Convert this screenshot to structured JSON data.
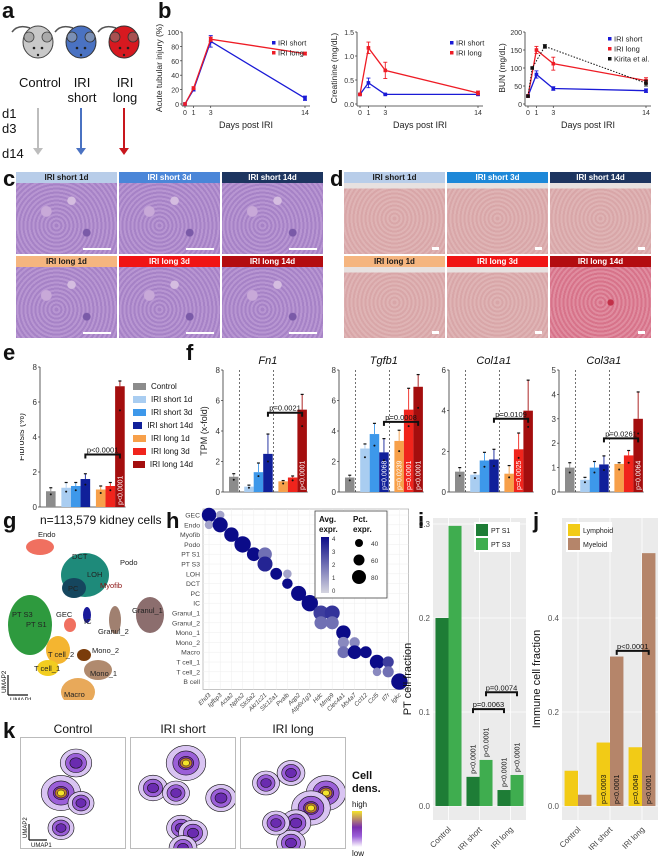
{
  "panels": {
    "a": "a",
    "b": "b",
    "c": "c",
    "d": "d",
    "e": "e",
    "f": "f",
    "g": "g",
    "h": "h",
    "i": "i",
    "j": "j",
    "k": "k"
  },
  "panel_a": {
    "groups": [
      {
        "label_line1": "Control",
        "label_line2": "",
        "color": "#bdbdbd"
      },
      {
        "label_line1": "IRI",
        "label_line2": "short",
        "color": "#4a72c2"
      },
      {
        "label_line1": "IRI",
        "label_line2": "long",
        "color": "#c8161d"
      }
    ],
    "timepoints": [
      "d1",
      "d3",
      "d14"
    ]
  },
  "panel_c": {
    "tiles": [
      {
        "label": "IRI short 1d",
        "hdr_color": "#b8cde9",
        "text_color": "#1a1a1a"
      },
      {
        "label": "IRI short 3d",
        "hdr_color": "#4a86d8",
        "text_color": "#ffffff"
      },
      {
        "label": "IRI short 14d",
        "hdr_color": "#1d3560",
        "text_color": "#ffffff"
      },
      {
        "label": "IRI long 1d",
        "hdr_color": "#f5b57f",
        "text_color": "#1a1a1a"
      },
      {
        "label": "IRI long 3d",
        "hdr_color": "#f01414",
        "text_color": "#ffffff"
      },
      {
        "label": "IRI long 14d",
        "hdr_color": "#b30c10",
        "text_color": "#ffffff"
      }
    ]
  },
  "panel_d": {
    "tiles": [
      {
        "label": "IRI short 1d",
        "hdr_color": "#b8cde9",
        "text_color": "#1a1a1a"
      },
      {
        "label": "IRI short 3d",
        "hdr_color": "#1e88d8",
        "text_color": "#ffffff"
      },
      {
        "label": "IRI short 14d",
        "hdr_color": "#1d3560",
        "text_color": "#ffffff"
      },
      {
        "label": "IRI long 1d",
        "hdr_color": "#f5b57f",
        "text_color": "#1a1a1a"
      },
      {
        "label": "IRI long 3d",
        "hdr_color": "#f01414",
        "text_color": "#ffffff"
      },
      {
        "label": "IRI long 14d",
        "hdr_color": "#b30c10",
        "text_color": "#ffffff"
      }
    ]
  },
  "panel_e_legend": [
    {
      "label": "Control",
      "color": "#8c8c8c"
    },
    {
      "label": "IRI short 1d",
      "color": "#a9cdf1"
    },
    {
      "label": "IRI short 3d",
      "color": "#3d98ea"
    },
    {
      "label": "IRI short 14d",
      "color": "#10209a"
    },
    {
      "label": "IRI long 1d",
      "color": "#f7a04a"
    },
    {
      "label": "IRI long 3d",
      "color": "#f0241c"
    },
    {
      "label": "IRI long 14d",
      "color": "#a40e0e"
    }
  ],
  "panel_g": {
    "title": "n=113,579 kidney cells",
    "axis_x": "UMAP1",
    "axis_y": "UMAP2",
    "clusters": [
      "Endo",
      "DCT",
      "LOH",
      "Podo",
      "PC",
      "Myofib",
      "PT S3",
      "PT S1",
      "GEC",
      "IC",
      "Granul_1",
      "Granul_2",
      "T cell_2",
      "T cell_1",
      "Mono_2",
      "Mono_1",
      "Macro",
      "B cell"
    ]
  },
  "panel_h": {
    "legend_avg_title": "Avg. expr.",
    "legend_pct_title": "Pct. expr.",
    "avg_ticks": [
      "4",
      "3",
      "2",
      "1",
      "0"
    ],
    "pct_ticks": [
      "40",
      "60",
      "80"
    ]
  },
  "panel_k": {
    "titles": [
      "Control",
      "IRI short",
      "IRI long"
    ],
    "axis_x": "UMAP1",
    "axis_y": "UMAP2",
    "legend_title_1": "Cell",
    "legend_title_2": "dens.",
    "legend_high": "high",
    "legend_low": "low"
  },
  "chart_data": [
    {
      "id": "b1",
      "type": "line",
      "title": "",
      "xlabel": "Days post IRI",
      "ylabel": "Acute tubular injury (%)",
      "x": [
        0,
        1,
        3,
        14
      ],
      "ylim": [
        0,
        100
      ],
      "yticks": [
        0,
        20,
        40,
        60,
        80,
        100
      ],
      "series": [
        {
          "name": "IRI short",
          "color": "#1a1ad6",
          "values": [
            0,
            20,
            87,
            8
          ],
          "err": [
            0,
            2,
            8,
            3
          ]
        },
        {
          "name": "IRI long",
          "color": "#ee1c25",
          "values": [
            0,
            22,
            90,
            70
          ],
          "err": [
            0,
            2,
            3,
            2
          ]
        }
      ]
    },
    {
      "id": "b2",
      "type": "line",
      "xlabel": "Days post IRI",
      "ylabel": "Creatinine (mg/dL)",
      "x": [
        0,
        1,
        3,
        14
      ],
      "ylim": [
        0,
        1.5
      ],
      "yticks": [
        0.0,
        0.5,
        1.0,
        1.5
      ],
      "series": [
        {
          "name": "IRI short",
          "color": "#1a1ad6",
          "values": [
            0.2,
            0.44,
            0.2,
            0.2
          ],
          "err": [
            0.01,
            0.1,
            0.01,
            0.02
          ]
        },
        {
          "name": "IRI long",
          "color": "#ee1c25",
          "values": [
            0.2,
            1.17,
            0.7,
            0.23
          ],
          "err": [
            0.01,
            0.12,
            0.17,
            0.04
          ]
        }
      ]
    },
    {
      "id": "b3",
      "type": "line",
      "xlabel": "Days post IRI",
      "ylabel": "BUN (mg/dL)",
      "x": [
        0,
        1,
        3,
        14
      ],
      "ylim": [
        0,
        200
      ],
      "yticks": [
        0,
        50,
        100,
        150,
        200
      ],
      "series": [
        {
          "name": "IRI short",
          "color": "#1a1ad6",
          "values": [
            22,
            82,
            43,
            37
          ],
          "err": [
            0,
            10,
            5,
            5
          ],
          "x": [
            0,
            1,
            3,
            14
          ]
        },
        {
          "name": "IRI long",
          "color": "#ee1c25",
          "values": [
            22,
            150,
            112,
            65
          ],
          "err": [
            0,
            10,
            18,
            8
          ],
          "x": [
            0,
            1,
            3,
            14
          ]
        },
        {
          "name": "Kirita et al.",
          "color": "#111111",
          "dashed": true,
          "values": [
            22,
            100,
            160,
            58
          ],
          "err": [
            0,
            0,
            5,
            8
          ],
          "x": [
            0,
            0.5,
            2,
            14
          ]
        }
      ]
    },
    {
      "id": "e",
      "type": "bar",
      "ylabel": "Fibrosis (%)",
      "ylim": [
        0,
        8
      ],
      "yticks": [
        0,
        2,
        4,
        6,
        8
      ],
      "categories": [
        "Control",
        "IRI short 1d",
        "IRI short 3d",
        "IRI short 14d",
        "IRI long 1d",
        "IRI long 3d",
        "IRI long 14d"
      ],
      "values": [
        0.9,
        1.1,
        1.2,
        1.6,
        1.0,
        1.2,
        6.9
      ],
      "err": [
        0.2,
        0.3,
        0.2,
        0.3,
        0.2,
        0.2,
        0.3
      ],
      "annotations": [
        {
          "text": "p<0.0001",
          "type": "bracket",
          "from": 3,
          "to": 6,
          "y": 3.0
        },
        {
          "text": "p<0.0001",
          "type": "vertical",
          "bar": 6
        }
      ]
    },
    {
      "id": "f1",
      "type": "bar",
      "title": "Fn1",
      "ylabel": "TPM (x-fold)",
      "ylim": [
        0,
        8
      ],
      "yticks": [
        0,
        2,
        4,
        6,
        8
      ],
      "categories": [
        "Control",
        "IRI short 1d",
        "IRI short 3d",
        "IRI short 14d",
        "IRI long 1d",
        "IRI long 3d",
        "IRI long 14d"
      ],
      "values": [
        1.0,
        0.35,
        1.3,
        2.5,
        0.7,
        0.95,
        5.4
      ],
      "err": [
        0.2,
        0.1,
        0.6,
        1.3,
        0.05,
        0.1,
        1.0
      ],
      "annotations": [
        {
          "text": "p=0.0021",
          "type": "bracket",
          "from": 3,
          "to": 6,
          "y": 5.2
        },
        {
          "text": "p<0.0001",
          "type": "vertical",
          "bar": 6
        }
      ]
    },
    {
      "id": "f2",
      "type": "bar",
      "title": "Tgfb1",
      "ylim": [
        0,
        8
      ],
      "yticks": [
        0,
        2,
        4,
        6,
        8
      ],
      "categories": [
        "Control",
        "IRI short 1d",
        "IRI short 3d",
        "IRI short 14d",
        "IRI long 1d",
        "IRI long 3d",
        "IRI long 14d"
      ],
      "values": [
        0.95,
        2.85,
        3.8,
        2.6,
        3.35,
        5.4,
        6.9
      ],
      "err": [
        0.15,
        0.3,
        0.7,
        0.9,
        0.7,
        1.4,
        0.8
      ],
      "annotations": [
        {
          "text": "p=0.0008",
          "type": "bracket",
          "from": 3,
          "to": 6,
          "y": 4.6
        },
        {
          "text": "p=0.0068",
          "type": "vertical",
          "bar": 3
        },
        {
          "text": "p=0.0239",
          "type": "vertical",
          "bar": 4
        },
        {
          "text": "p=0.0001",
          "type": "vertical",
          "bar": 5
        },
        {
          "text": "p<0.0001",
          "type": "vertical",
          "bar": 6
        }
      ]
    },
    {
      "id": "f3",
      "type": "bar",
      "title": "Col1a1",
      "ylim": [
        0,
        6
      ],
      "yticks": [
        0,
        2,
        4,
        6
      ],
      "categories": [
        "Control",
        "IRI short 1d",
        "IRI short 3d",
        "IRI short 14d",
        "IRI long 1d",
        "IRI long 3d",
        "IRI long 14d"
      ],
      "values": [
        1.0,
        0.85,
        1.55,
        1.6,
        0.9,
        2.1,
        4.0
      ],
      "err": [
        0.2,
        0.1,
        0.4,
        0.5,
        0.4,
        0.8,
        1.5
      ],
      "annotations": [
        {
          "text": "p=0.0109",
          "type": "bracket",
          "from": 3,
          "to": 6,
          "y": 3.6
        },
        {
          "text": "p=0.0025",
          "type": "vertical",
          "bar": 5
        }
      ]
    },
    {
      "id": "f4",
      "type": "bar",
      "title": "Col3a1",
      "ylim": [
        0,
        5
      ],
      "yticks": [
        0,
        1,
        2,
        3,
        4,
        5
      ],
      "categories": [
        "Control",
        "IRI short 1d",
        "IRI short 3d",
        "IRI short 14d",
        "IRI long 1d",
        "IRI long 3d",
        "IRI long 14d"
      ],
      "values": [
        1.0,
        0.5,
        1.0,
        1.13,
        1.15,
        1.5,
        3.0
      ],
      "err": [
        0.2,
        0.1,
        0.25,
        0.35,
        0.05,
        0.2,
        1.1
      ],
      "annotations": [
        {
          "text": "p=0.0261",
          "type": "bracket",
          "from": 3,
          "to": 6,
          "y": 2.2
        },
        {
          "text": "p=0.0064",
          "type": "vertical",
          "bar": 6
        }
      ]
    },
    {
      "id": "h",
      "type": "scatter",
      "title": "dot plot",
      "rows": [
        "GEC",
        "Endo",
        "Myofib",
        "Podo",
        "PT S1",
        "PT S3",
        "LOH",
        "DCT",
        "PC",
        "IC",
        "Granul_1",
        "Granul_2",
        "Mono_1",
        "Mono_2",
        "Macro",
        "T cell_1",
        "T cell_2",
        "B cell"
      ],
      "cols": [
        "Ehd3",
        "Igfbp3",
        "Acta2",
        "Nphs2",
        "Slc5a2",
        "Akr1c21",
        "Slc12a1",
        "Pvalb",
        "Aqp2",
        "Atp6v1g3",
        "Hdc",
        "Mmp9",
        "Clec4a1",
        "Ms4a7",
        "Ccl12",
        "Ccl5",
        "Il7r",
        "Igkc"
      ],
      "dots": [
        [
          0,
          0,
          4,
          80
        ],
        [
          0,
          1,
          1,
          35
        ],
        [
          1,
          0,
          1,
          35
        ],
        [
          1,
          1,
          4,
          85
        ],
        [
          2,
          2,
          4,
          80
        ],
        [
          3,
          3,
          4,
          95
        ],
        [
          4,
          4,
          4,
          75
        ],
        [
          4,
          5,
          2,
          75
        ],
        [
          5,
          5,
          3.5,
          85
        ],
        [
          6,
          6,
          4,
          60
        ],
        [
          6,
          7,
          1,
          35
        ],
        [
          7,
          7,
          4,
          50
        ],
        [
          8,
          8,
          4,
          85
        ],
        [
          9,
          9,
          4,
          95
        ],
        [
          10,
          10,
          3,
          85
        ],
        [
          10,
          11,
          3.2,
          85
        ],
        [
          11,
          10,
          2,
          70
        ],
        [
          11,
          11,
          2,
          70
        ],
        [
          12,
          12,
          4,
          80
        ],
        [
          13,
          12,
          1.5,
          55
        ],
        [
          13,
          13,
          1.5,
          50
        ],
        [
          14,
          12,
          2,
          60
        ],
        [
          14,
          13,
          4,
          75
        ],
        [
          14,
          14,
          4,
          60
        ],
        [
          15,
          15,
          4,
          80
        ],
        [
          15,
          16,
          3,
          55
        ],
        [
          16,
          15,
          1.5,
          35
        ],
        [
          16,
          16,
          2,
          55
        ],
        [
          17,
          17,
          4,
          95
        ]
      ],
      "color_range": [
        "#d5d5e0",
        "#0b0b88"
      ]
    },
    {
      "id": "i",
      "type": "bar",
      "ylabel": "PT cell fraction",
      "ylim": [
        0,
        0.3
      ],
      "yticks": [
        0.0,
        0.1,
        0.2,
        0.3
      ],
      "categories": [
        "Control",
        "IRI short",
        "IRI long"
      ],
      "series": [
        {
          "name": "PT S1",
          "color": "#1e7d36",
          "values": [
            0.2,
            0.031,
            0.017
          ]
        },
        {
          "name": "PT S3",
          "color": "#3fad4f",
          "values": [
            0.298,
            0.049,
            0.033
          ]
        }
      ],
      "annotations": [
        {
          "text": "p=0.0063",
          "type": "bracket",
          "from": "IRI short S1",
          "to": "IRI long S1",
          "y": 0.103
        },
        {
          "text": "p=0.0074",
          "type": "bracket",
          "from": "IRI short S3",
          "to": "IRI long S3",
          "y": 0.121
        },
        {
          "text": "p<0.0001",
          "bar": "IRI short PT S1"
        },
        {
          "text": "p<0.0001",
          "bar": "IRI short PT S3"
        },
        {
          "text": "p<0.0001",
          "bar": "IRI long PT S1"
        },
        {
          "text": "p<0.0001",
          "bar": "IRI long PT S3"
        }
      ]
    },
    {
      "id": "j",
      "type": "bar",
      "ylabel": "Immune cell fraction",
      "ylim": [
        0,
        0.6
      ],
      "yticks": [
        0.0,
        0.2,
        0.4
      ],
      "categories": [
        "Control",
        "IRI short",
        "IRI long"
      ],
      "series": [
        {
          "name": "Lymphoid",
          "color": "#f2cb16",
          "values": [
            0.075,
            0.135,
            0.125
          ]
        },
        {
          "name": "Myeloid",
          "color": "#b5856a",
          "values": [
            0.024,
            0.318,
            0.538
          ]
        }
      ],
      "annotations": [
        {
          "text": "p<0.0001",
          "type": "bracket",
          "from": "IRI short Myeloid",
          "to": "IRI long Myeloid",
          "y": 0.33
        },
        {
          "text": "p=0.0003",
          "bar": "IRI short Lymphoid"
        },
        {
          "text": "p<0.0001",
          "bar": "IRI short Myeloid"
        },
        {
          "text": "p=0.0049",
          "bar": "IRI long Lymphoid"
        },
        {
          "text": "p<0.0001",
          "bar": "IRI long Myeloid"
        }
      ]
    }
  ]
}
